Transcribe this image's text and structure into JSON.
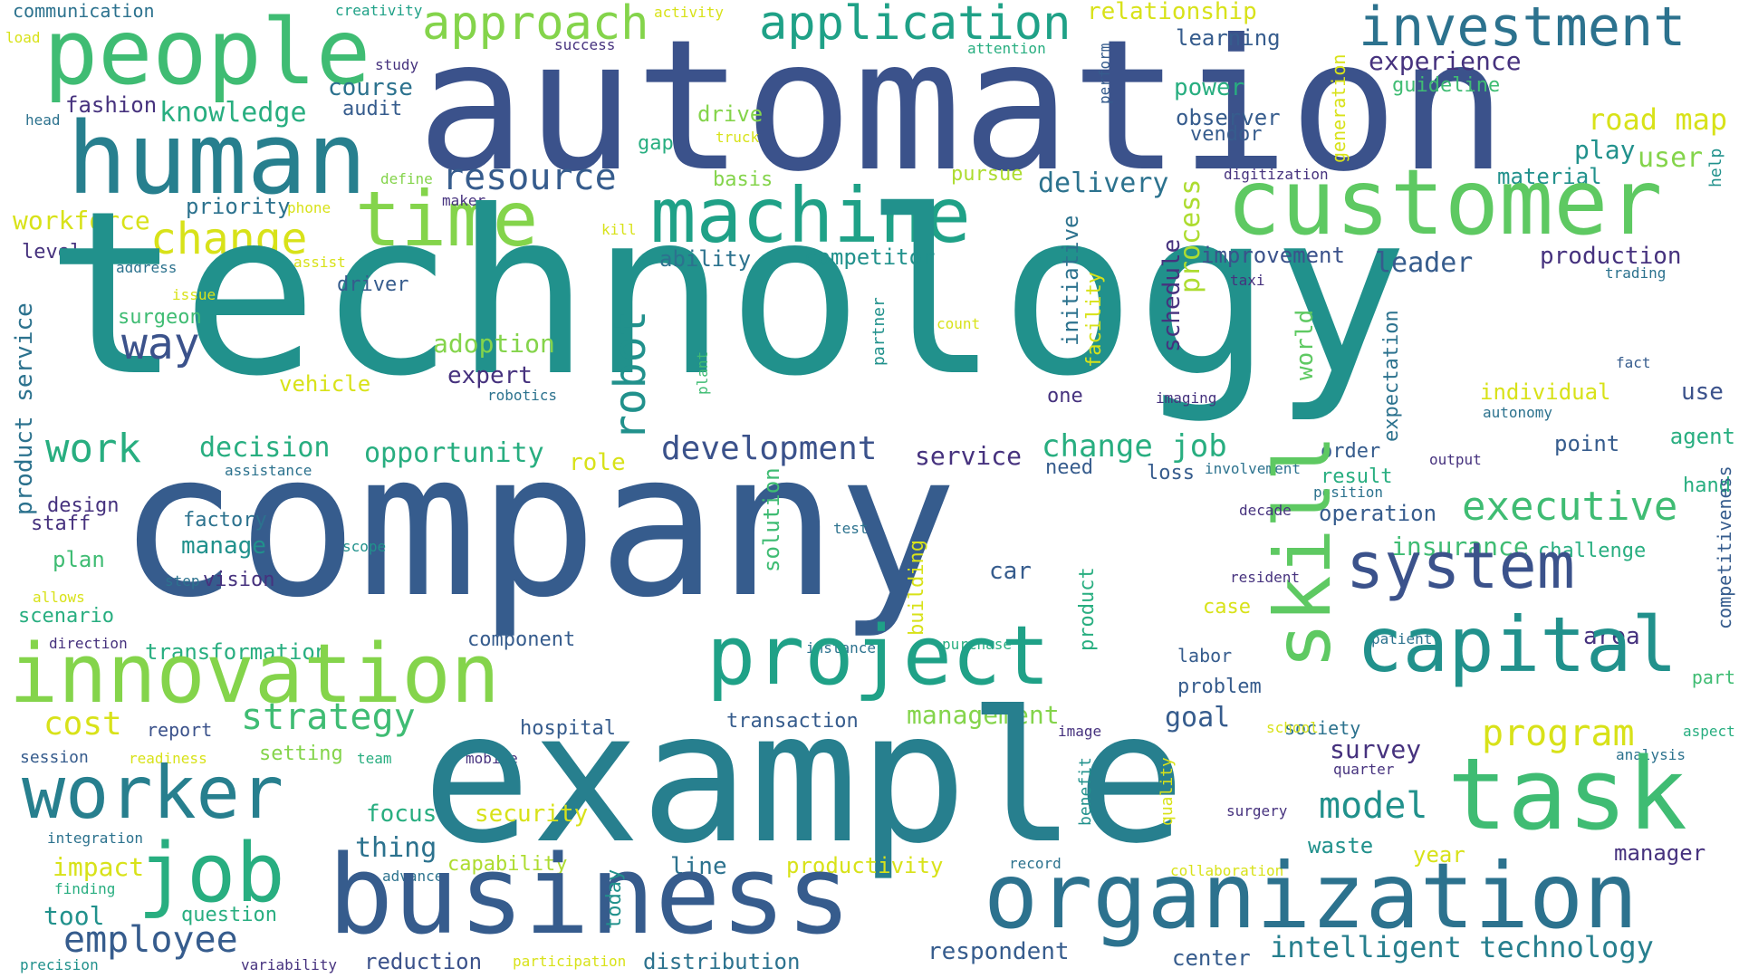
{
  "palette": {
    "purple": "#46327e",
    "indigo": "#3b528b",
    "blue": "#365c8d",
    "steel": "#2c728e",
    "teal": "#277f8e",
    "sea": "#21918c",
    "green": "#1fa187",
    "jade": "#28ae80",
    "mint": "#3fbc73",
    "lime": "#5ec962",
    "grass": "#84d44b",
    "yellowgreen": "#addc30",
    "yellow": "#d8e219",
    "gold": "#fde725"
  },
  "words": [
    {
      "text": "communication",
      "color": "steel"
    },
    {
      "text": "creativity",
      "color": "green"
    },
    {
      "text": "activity",
      "color": "yellow"
    },
    {
      "text": "load",
      "color": "yellow"
    },
    {
      "text": "people",
      "color": "mint"
    },
    {
      "text": "automation",
      "color": "indigo"
    },
    {
      "text": "approach",
      "color": "grass"
    },
    {
      "text": "application",
      "color": "green"
    },
    {
      "text": "relationship",
      "color": "yellow"
    },
    {
      "text": "investment",
      "color": "steel"
    },
    {
      "text": "success",
      "color": "purple"
    },
    {
      "text": "study",
      "color": "purple"
    },
    {
      "text": "attention",
      "color": "jade"
    },
    {
      "text": "perform",
      "color": "blue"
    },
    {
      "text": "learning",
      "color": "blue"
    },
    {
      "text": "experience",
      "color": "purple"
    },
    {
      "text": "generation",
      "color": "yellow"
    },
    {
      "text": "course",
      "color": "steel"
    },
    {
      "text": "power",
      "color": "jade"
    },
    {
      "text": "guideline",
      "color": "mint"
    },
    {
      "text": "head",
      "color": "steel"
    },
    {
      "text": "fashion",
      "color": "purple"
    },
    {
      "text": "audit",
      "color": "blue"
    },
    {
      "text": "knowledge",
      "color": "jade"
    },
    {
      "text": "observer",
      "color": "blue"
    },
    {
      "text": "road map",
      "color": "yellow"
    },
    {
      "text": "human",
      "color": "teal"
    },
    {
      "text": "drive",
      "color": "grass"
    },
    {
      "text": "vendor",
      "color": "blue"
    },
    {
      "text": "gap",
      "color": "jade"
    },
    {
      "text": "truck",
      "color": "yellow"
    },
    {
      "text": "play",
      "color": "sea"
    },
    {
      "text": "user",
      "color": "grass"
    },
    {
      "text": "resource",
      "color": "blue"
    },
    {
      "text": "define",
      "color": "grass"
    },
    {
      "text": "basis",
      "color": "grass"
    },
    {
      "text": "pursue",
      "color": "yellowgreen"
    },
    {
      "text": "digitization",
      "color": "purple"
    },
    {
      "text": "material",
      "color": "sea"
    },
    {
      "text": "time",
      "color": "grass"
    },
    {
      "text": "machine",
      "color": "green"
    },
    {
      "text": "customer",
      "color": "lime"
    },
    {
      "text": "workforce",
      "color": "yellow"
    },
    {
      "text": "priority",
      "color": "steel"
    },
    {
      "text": "phone",
      "color": "yellow"
    },
    {
      "text": "maker",
      "color": "purple"
    },
    {
      "text": "kill",
      "color": "yellow"
    },
    {
      "text": "delivery",
      "color": "steel"
    },
    {
      "text": "change",
      "color": "yellow"
    },
    {
      "text": "level",
      "color": "purple"
    },
    {
      "text": "address",
      "color": "steel"
    },
    {
      "text": "assist",
      "color": "yellow"
    },
    {
      "text": "technology",
      "color": "sea"
    },
    {
      "text": "help",
      "color": "sea"
    },
    {
      "text": "improvement",
      "color": "indigo"
    },
    {
      "text": "production",
      "color": "purple"
    },
    {
      "text": "leader",
      "color": "blue"
    },
    {
      "text": "ability",
      "color": "steel"
    },
    {
      "text": "competitor",
      "color": "sea"
    },
    {
      "text": "trading",
      "color": "steel"
    },
    {
      "text": "driver",
      "color": "blue"
    },
    {
      "text": "taxi",
      "color": "purple"
    },
    {
      "text": "issue",
      "color": "yellow"
    },
    {
      "text": "surgeon",
      "color": "mint"
    },
    {
      "text": "process",
      "color": "yellowgreen"
    },
    {
      "text": "schedule",
      "color": "purple"
    },
    {
      "text": "initiative",
      "color": "steel"
    },
    {
      "text": "facility",
      "color": "yellow"
    },
    {
      "text": "count",
      "color": "yellow"
    },
    {
      "text": "partner",
      "color": "sea"
    },
    {
      "text": "way",
      "color": "indigo"
    },
    {
      "text": "robot",
      "color": "sea"
    },
    {
      "text": "adoption",
      "color": "grass"
    },
    {
      "text": "plant",
      "color": "mint"
    },
    {
      "text": "world",
      "color": "lime"
    },
    {
      "text": "expectation",
      "color": "steel"
    },
    {
      "text": "fact",
      "color": "blue"
    },
    {
      "text": "expert",
      "color": "purple"
    },
    {
      "text": "product service",
      "color": "steel"
    },
    {
      "text": "vehicle",
      "color": "yellow"
    },
    {
      "text": "robotics",
      "color": "steel"
    },
    {
      "text": "one",
      "color": "purple"
    },
    {
      "text": "imaging",
      "color": "purple"
    },
    {
      "text": "individual",
      "color": "yellow"
    },
    {
      "text": "use",
      "color": "indigo"
    },
    {
      "text": "autonomy",
      "color": "steel"
    },
    {
      "text": "work",
      "color": "jade"
    },
    {
      "text": "decision",
      "color": "jade"
    },
    {
      "text": "opportunity",
      "color": "jade"
    },
    {
      "text": "development",
      "color": "indigo"
    },
    {
      "text": "service",
      "color": "purple"
    },
    {
      "text": "change job",
      "color": "jade"
    },
    {
      "text": "agent",
      "color": "jade"
    },
    {
      "text": "output",
      "color": "purple"
    },
    {
      "text": "point",
      "color": "blue"
    },
    {
      "text": "order",
      "color": "blue"
    },
    {
      "text": "assistance",
      "color": "steel"
    },
    {
      "text": "role",
      "color": "yellow"
    },
    {
      "text": "need",
      "color": "blue"
    },
    {
      "text": "loss",
      "color": "blue"
    },
    {
      "text": "involvement",
      "color": "steel"
    },
    {
      "text": "result",
      "color": "jade"
    },
    {
      "text": "position",
      "color": "steel"
    },
    {
      "text": "hand",
      "color": "jade"
    },
    {
      "text": "competitiveness",
      "color": "blue"
    },
    {
      "text": "company",
      "color": "blue"
    },
    {
      "text": "skill",
      "color": "lime"
    },
    {
      "text": "design",
      "color": "purple"
    },
    {
      "text": "staff",
      "color": "purple"
    },
    {
      "text": "factory",
      "color": "steel"
    },
    {
      "text": "solution",
      "color": "mint"
    },
    {
      "text": "decade",
      "color": "purple"
    },
    {
      "text": "operation",
      "color": "blue"
    },
    {
      "text": "executive",
      "color": "mint"
    },
    {
      "text": "test",
      "color": "steel"
    },
    {
      "text": "manage",
      "color": "sea"
    },
    {
      "text": "scope",
      "color": "sea"
    },
    {
      "text": "plan",
      "color": "mint"
    },
    {
      "text": "insurance",
      "color": "mint"
    },
    {
      "text": "challenge",
      "color": "jade"
    },
    {
      "text": "building",
      "color": "yellow"
    },
    {
      "text": "car",
      "color": "blue"
    },
    {
      "text": "system",
      "color": "indigo"
    },
    {
      "text": "step",
      "color": "steel"
    },
    {
      "text": "vision",
      "color": "purple"
    },
    {
      "text": "resident",
      "color": "purple"
    },
    {
      "text": "allows",
      "color": "yellow"
    },
    {
      "text": "product",
      "color": "jade"
    },
    {
      "text": "case",
      "color": "yellow"
    },
    {
      "text": "scenario",
      "color": "jade"
    },
    {
      "text": "direction",
      "color": "purple"
    },
    {
      "text": "instance",
      "color": "steel"
    },
    {
      "text": "purchase",
      "color": "jade"
    },
    {
      "text": "patient",
      "color": "steel"
    },
    {
      "text": "transformation",
      "color": "jade"
    },
    {
      "text": "component",
      "color": "blue"
    },
    {
      "text": "area",
      "color": "purple"
    },
    {
      "text": "innovation",
      "color": "grass"
    },
    {
      "text": "project",
      "color": "green"
    },
    {
      "text": "labor",
      "color": "blue"
    },
    {
      "text": "capital",
      "color": "sea"
    },
    {
      "text": "part",
      "color": "mint"
    },
    {
      "text": "problem",
      "color": "blue"
    },
    {
      "text": "cost",
      "color": "yellow"
    },
    {
      "text": "strategy",
      "color": "mint"
    },
    {
      "text": "management",
      "color": "grass"
    },
    {
      "text": "goal",
      "color": "blue"
    },
    {
      "text": "report",
      "color": "indigo"
    },
    {
      "text": "transaction",
      "color": "blue"
    },
    {
      "text": "hospital",
      "color": "blue"
    },
    {
      "text": "society",
      "color": "steel"
    },
    {
      "text": "program",
      "color": "yellow"
    },
    {
      "text": "aspect",
      "color": "jade"
    },
    {
      "text": "session",
      "color": "blue"
    },
    {
      "text": "mobile",
      "color": "purple"
    },
    {
      "text": "image",
      "color": "purple"
    },
    {
      "text": "school",
      "color": "yellow"
    },
    {
      "text": "readiness",
      "color": "yellow"
    },
    {
      "text": "setting",
      "color": "grass"
    },
    {
      "text": "team",
      "color": "jade"
    },
    {
      "text": "survey",
      "color": "purple"
    },
    {
      "text": "analysis",
      "color": "steel"
    },
    {
      "text": "quarter",
      "color": "purple"
    },
    {
      "text": "worker",
      "color": "teal"
    },
    {
      "text": "example",
      "color": "teal"
    },
    {
      "text": "task",
      "color": "mint"
    },
    {
      "text": "quality",
      "color": "yellow"
    },
    {
      "text": "benefit",
      "color": "sea"
    },
    {
      "text": "model",
      "color": "sea"
    },
    {
      "text": "focus",
      "color": "jade"
    },
    {
      "text": "security",
      "color": "yellow"
    },
    {
      "text": "integration",
      "color": "steel"
    },
    {
      "text": "surgery",
      "color": "purple"
    },
    {
      "text": "job",
      "color": "jade"
    },
    {
      "text": "thing",
      "color": "steel"
    },
    {
      "text": "waste",
      "color": "sea"
    },
    {
      "text": "impact",
      "color": "yellow"
    },
    {
      "text": "capability",
      "color": "yellowgreen"
    },
    {
      "text": "line",
      "color": "steel"
    },
    {
      "text": "productivity",
      "color": "yellow"
    },
    {
      "text": "record",
      "color": "steel"
    },
    {
      "text": "year",
      "color": "yellow"
    },
    {
      "text": "manager",
      "color": "purple"
    },
    {
      "text": "advance",
      "color": "steel"
    },
    {
      "text": "collaboration",
      "color": "yellow"
    },
    {
      "text": "finding",
      "color": "jade"
    },
    {
      "text": "business",
      "color": "blue"
    },
    {
      "text": "organization",
      "color": "steel"
    },
    {
      "text": "tool",
      "color": "sea"
    },
    {
      "text": "question",
      "color": "jade"
    },
    {
      "text": "today",
      "color": "sea"
    },
    {
      "text": "employee",
      "color": "blue"
    },
    {
      "text": "respondent",
      "color": "blue"
    },
    {
      "text": "intelligent technology",
      "color": "teal"
    },
    {
      "text": "center",
      "color": "blue"
    },
    {
      "text": "precision",
      "color": "sea"
    },
    {
      "text": "variability",
      "color": "purple"
    },
    {
      "text": "reduction",
      "color": "indigo"
    },
    {
      "text": "participation",
      "color": "yellow"
    },
    {
      "text": "distribution",
      "color": "steel"
    }
  ]
}
